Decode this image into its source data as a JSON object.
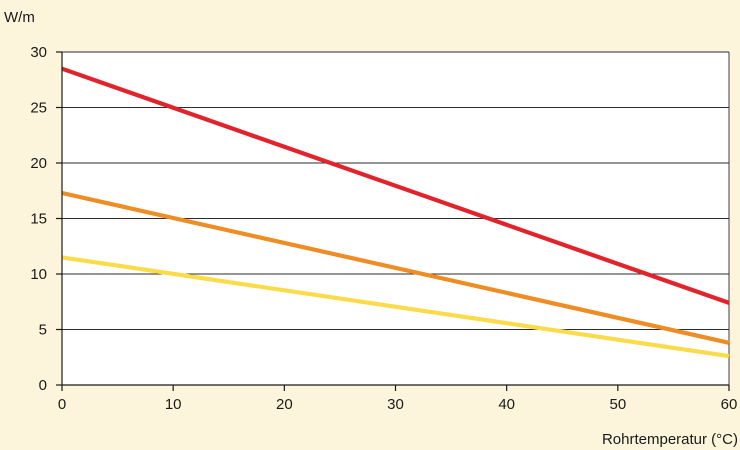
{
  "chart_data": {
    "type": "line",
    "xlabel": "Rohrtemperatur (°C)",
    "ylabel": "W/m",
    "xlim": [
      0,
      60
    ],
    "ylim": [
      0,
      30
    ],
    "xticks": [
      0,
      10,
      20,
      30,
      40,
      50,
      60
    ],
    "yticks": [
      0,
      5,
      10,
      15,
      20,
      25,
      30
    ],
    "grid": "horizontal",
    "legend": "none",
    "background": "#fcf5dc",
    "plot_background": "#ffffff",
    "series": [
      {
        "color": "#e3232b",
        "x": [
          0,
          60
        ],
        "y": [
          28.5,
          7.4
        ]
      },
      {
        "color": "#ef8c23",
        "x": [
          0,
          60
        ],
        "y": [
          17.3,
          3.8
        ]
      },
      {
        "color": "#fadc4b",
        "x": [
          0,
          60
        ],
        "y": [
          11.5,
          2.6
        ]
      }
    ]
  }
}
